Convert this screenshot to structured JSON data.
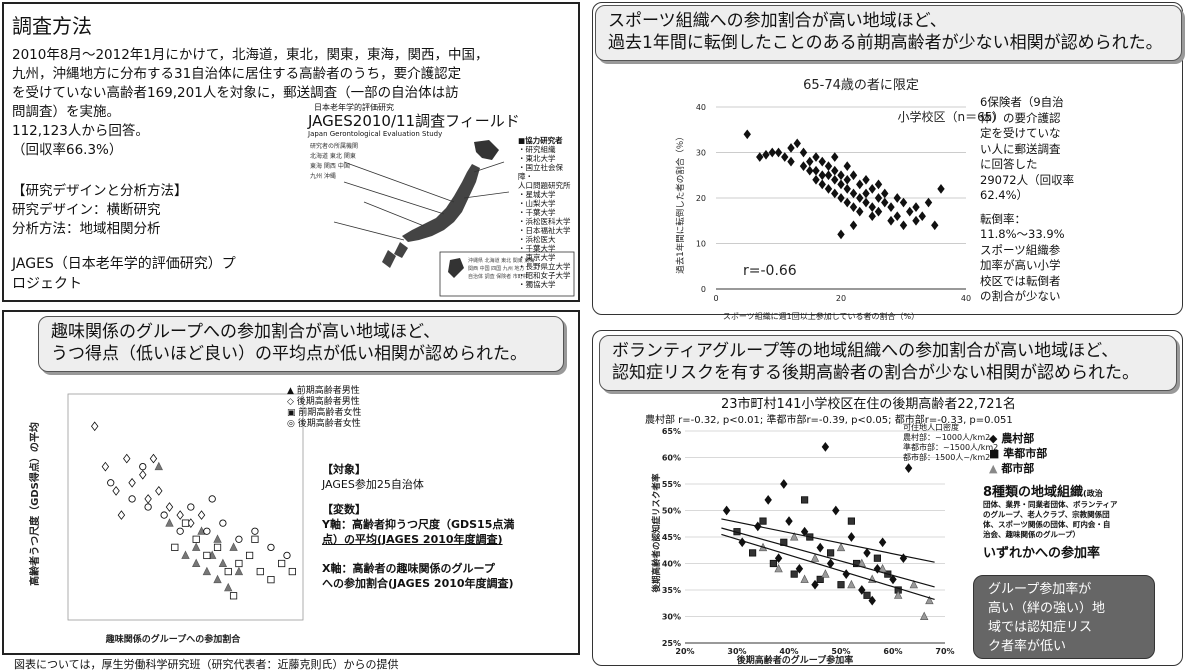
{
  "methods": {
    "title": "調査方法",
    "para": [
      "2010年8月～2012年1月にかけて，北海道，東北，関東，東海，関西，中国，",
      "九州，沖縄地方に分布する31自治体に居住する高齢者のうち，要介護認定",
      "を受けていない高齢者169,201人を対象に，郵送調査（一部の自治体は訪",
      "問調査）を実施。",
      "112,123人から回答。",
      "（回収率66.3%）"
    ],
    "design_head": "【研究デザインと分析方法】",
    "design": "研究デザイン：横断研究",
    "analysis": "分析方法：地域相関分析",
    "jages": [
      "JAGES（日本老年学的評価研究）プ",
      "ロジェクト"
    ],
    "map_title": "JAGES2010/11調査フィールド",
    "map_sub": "Japan Gerontological Evaluation Study",
    "map_small": "日本老年学的評価研究",
    "collab_title": "■協力研究者",
    "collab": [
      "・研究組織",
      "・東北大学",
      "・国立社会保障・",
      "人口問題研究所",
      "・星城大学",
      "・山梨大学",
      "・千葉大学",
      "・浜松医科大学",
      "・日本福祉大学",
      "・浜松医大",
      "・千葉大学",
      "・東京大学",
      "・長野県立大学",
      "・昭和女子大学",
      "・獨協大学"
    ]
  },
  "sports": {
    "banner": [
      "スポーツ組織への参加割合が高い地域ほど、",
      "過去1年間に転倒したことのある前期高齢者が少ない相関が認められた。"
    ],
    "chart_title": "65-74歳の者に限定",
    "label": "小学校区（n＝65）",
    "r": "r=-0.66",
    "ylabel": "過去1年間に転倒した者の割合（％）",
    "xlabel": "スポーツ組織に週1回以上参加している者の割合（%）",
    "note": [
      "6保険者（9自治",
      "体）の要介護認",
      "定を受けていな",
      "い人に郵送調査",
      "に回答した",
      "29072人（回収率",
      "62.4%）",
      "",
      "転倒率：",
      "11.8%～33.9%",
      "スポーツ組織参",
      "加率が高い小学",
      "校区では転倒者",
      "の割合が少ない"
    ]
  },
  "hobby": {
    "banner": [
      "趣味関係のグループへの参加割合が高い地域ほど、",
      "うつ得点（低いほど良い）の平均点が低い相関が認められた。"
    ],
    "legend": [
      "前期高齢者男性",
      "後期高齢者男性",
      "前期高齢者女性",
      "後期高齢者女性"
    ],
    "ylabel": "高齢者うつ尺度（GDS得点）の平均",
    "xlabel": "趣味関係のグループへの参加割合",
    "subject_head": "【対象】",
    "subject": "JAGES参加25自治体",
    "var_head": "【変数】",
    "var_y": [
      "Y軸：高齢者抑うつ尺度（GDS15点満",
      "点）の平均(JAGES 2010年度調査)"
    ],
    "var_x": [
      "X軸：高齢者の趣味関係のグループ",
      "への参加割合(JAGES 2010年度調査)"
    ]
  },
  "volunteer": {
    "banner": [
      "ボランティアグループ等の地域組織への参加割合が高い地域ほど、",
      "認知症リスクを有する後期高齢者の割合が少ない相関が認められた。"
    ],
    "chart_title": "23市町村141小学校区在住の後期高齢者22,721名",
    "stats": "農村部 r=-0.32, p<0.01; 準都市部r=-0.39, p<0.05; 都市部r=-0.33, p=0.051",
    "density": [
      "可住地人口密度",
      "農村部：~1000人/km2",
      "準都市部：~1500人/km2",
      "都市部：1500人~/km2"
    ],
    "legend": [
      "農村部",
      "準都市部",
      "都市部"
    ],
    "orgs_title": "8種類の地域組織",
    "orgs_suffix": "(政治",
    "orgs": [
      "団体、業界・同業者団体、ボランティア",
      "のグループ、老人クラブ、宗教関係団",
      "体、スポーツ関係の団体、町内会・自",
      "治会、趣味関係のグループ）"
    ],
    "any": "いずれかへの参加率",
    "callout": [
      "グループ参加率が",
      "高い（絆の強い）地",
      "域では認知症リス",
      "ク者率が低い"
    ],
    "ylabel": "後期高齢者の認知症リスク者率",
    "xlabel": "後期高齢者のグループ参加率"
  },
  "footer": "図表については，厚生労働科学研究班（研究代表者：近藤克則氏）からの提供",
  "chart_data": [
    {
      "type": "scatter",
      "title": "65-74歳の者に限定",
      "xlabel": "スポーツ組織に週1回以上参加している者の割合（%）",
      "ylabel": "過去1年間に転倒した者の割合（％）",
      "xlim": [
        0,
        40
      ],
      "ylim": [
        0,
        40
      ],
      "xticks": [
        0,
        20,
        40
      ],
      "yticks": [
        0,
        10,
        20,
        30,
        40
      ],
      "grid": true,
      "series": [
        {
          "values": [
            [
              5,
              34
            ],
            [
              7,
              29
            ],
            [
              8,
              29.5
            ],
            [
              9,
              30
            ],
            [
              10,
              30
            ],
            [
              11,
              29
            ],
            [
              12,
              31
            ],
            [
              12,
              28
            ],
            [
              13,
              32
            ],
            [
              14,
              30
            ],
            [
              14,
              27
            ],
            [
              15,
              28
            ],
            [
              15,
              26
            ],
            [
              16,
              29
            ],
            [
              16,
              26
            ],
            [
              16,
              24
            ],
            [
              17,
              28
            ],
            [
              17,
              25
            ],
            [
              17,
              23
            ],
            [
              18,
              27
            ],
            [
              18,
              25
            ],
            [
              18,
              22
            ],
            [
              19,
              26
            ],
            [
              19,
              24
            ],
            [
              19,
              21
            ],
            [
              20,
              25
            ],
            [
              20,
              23
            ],
            [
              20,
              20
            ],
            [
              21,
              27
            ],
            [
              21,
              24
            ],
            [
              21,
              22
            ],
            [
              21,
              19
            ],
            [
              22,
              25
            ],
            [
              22,
              21
            ],
            [
              22,
              18
            ],
            [
              23,
              23
            ],
            [
              23,
              20
            ],
            [
              23,
              17
            ],
            [
              24,
              24
            ],
            [
              24,
              21
            ],
            [
              24,
              19
            ],
            [
              25,
              22
            ],
            [
              25,
              18
            ],
            [
              25,
              16
            ],
            [
              26,
              20
            ],
            [
              26,
              17
            ],
            [
              27,
              21
            ],
            [
              27,
              19
            ],
            [
              28,
              18
            ],
            [
              28,
              15
            ],
            [
              29,
              20
            ],
            [
              29,
              16
            ],
            [
              30,
              19
            ],
            [
              30,
              14
            ],
            [
              31,
              17
            ],
            [
              32,
              18
            ],
            [
              32,
              15
            ],
            [
              33,
              16
            ],
            [
              34,
              19
            ],
            [
              35,
              14
            ],
            [
              36,
              22
            ],
            [
              20,
              12
            ],
            [
              22,
              14
            ],
            [
              26,
              23
            ],
            [
              19,
              29
            ]
          ]
        }
      ]
    },
    {
      "type": "scatter",
      "xlabel": "趣味関係のグループへの参加割合",
      "ylabel": "高齢者うつ尺度（GDS得点）の平均",
      "xlim": [
        1.8,
        6.2
      ],
      "ylim": [
        2.4,
        5.2
      ],
      "series": [
        {
          "name": "前期高齢者男性",
          "values": [
            [
              3.5,
              4.3
            ],
            [
              3.7,
              3.6
            ],
            [
              4.0,
              3.2
            ],
            [
              4.2,
              3.3
            ],
            [
              4.3,
              3.5
            ],
            [
              4.4,
              3.0
            ],
            [
              4.5,
              3.2
            ],
            [
              4.6,
              2.9
            ],
            [
              4.7,
              3.1
            ],
            [
              4.8,
              2.8
            ],
            [
              4.9,
              3.3
            ],
            [
              5.0,
              3.0
            ],
            [
              4.2,
              3.1
            ],
            [
              4.6,
              3.4
            ]
          ]
        },
        {
          "name": "後期高齢者男性",
          "values": [
            [
              2.3,
              4.8
            ],
            [
              2.5,
              4.3
            ],
            [
              2.7,
              4.0
            ],
            [
              2.9,
              4.4
            ],
            [
              3.0,
              4.1
            ],
            [
              3.2,
              4.2
            ],
            [
              3.3,
              3.9
            ],
            [
              3.5,
              4.0
            ],
            [
              3.7,
              3.8
            ],
            [
              3.9,
              3.7
            ],
            [
              4.1,
              3.6
            ],
            [
              4.3,
              3.7
            ],
            [
              2.8,
              3.7
            ],
            [
              3.4,
              4.4
            ]
          ]
        },
        {
          "name": "前期高齢者女性",
          "values": [
            [
              3.8,
              3.3
            ],
            [
              4.0,
              3.6
            ],
            [
              4.2,
              3.4
            ],
            [
              4.4,
              3.2
            ],
            [
              4.6,
              3.3
            ],
            [
              4.8,
              3.0
            ],
            [
              5.0,
              3.1
            ],
            [
              5.2,
              3.2
            ],
            [
              5.4,
              3.0
            ],
            [
              5.6,
              2.9
            ],
            [
              5.8,
              3.1
            ],
            [
              6.0,
              3.0
            ],
            [
              4.9,
              2.7
            ],
            [
              5.3,
              3.4
            ]
          ]
        },
        {
          "name": "後期高齢者女性",
          "values": [
            [
              2.6,
              4.1
            ],
            [
              3.0,
              3.9
            ],
            [
              3.3,
              3.8
            ],
            [
              3.6,
              3.7
            ],
            [
              3.9,
              3.5
            ],
            [
              4.1,
              3.8
            ],
            [
              4.4,
              3.5
            ],
            [
              4.7,
              3.6
            ],
            [
              5.0,
              3.4
            ],
            [
              5.3,
              3.5
            ],
            [
              5.6,
              3.3
            ],
            [
              5.9,
              3.2
            ],
            [
              3.2,
              4.3
            ],
            [
              4.5,
              3.9
            ]
          ]
        }
      ]
    },
    {
      "type": "scatter",
      "title": "23市町村141小学校区在住の後期高齢者22,721名",
      "xlabel": "後期高齢者のグループ参加率",
      "ylabel": "後期高齢者の認知症リスク者率",
      "xlim": [
        20,
        70
      ],
      "ylim": [
        25,
        65
      ],
      "xticks": [
        "20%",
        "30%",
        "40%",
        "50%",
        "60%",
        "70%"
      ],
      "yticks": [
        "25%",
        "30%",
        "35%",
        "40%",
        "45%",
        "50%",
        "55%",
        "60%",
        "65%"
      ],
      "series": [
        {
          "name": "農村部",
          "values": [
            [
              28,
              50
            ],
            [
              31,
              44
            ],
            [
              34,
              47
            ],
            [
              36,
              52
            ],
            [
              38,
              41
            ],
            [
              40,
              48
            ],
            [
              42,
              39
            ],
            [
              43,
              46
            ],
            [
              45,
              36
            ],
            [
              46,
              43
            ],
            [
              48,
              40
            ],
            [
              49,
              50
            ],
            [
              51,
              38
            ],
            [
              52,
              45
            ],
            [
              54,
              35
            ],
            [
              55,
              42
            ],
            [
              57,
              39
            ],
            [
              58,
              44
            ],
            [
              60,
              37
            ],
            [
              62,
              41
            ],
            [
              63,
              58
            ],
            [
              47,
              62
            ],
            [
              39,
              55
            ],
            [
              56,
              33
            ]
          ]
        },
        {
          "name": "準都市部",
          "values": [
            [
              30,
              46
            ],
            [
              33,
              42
            ],
            [
              35,
              48
            ],
            [
              37,
              40
            ],
            [
              39,
              44
            ],
            [
              41,
              38
            ],
            [
              44,
              45
            ],
            [
              46,
              37
            ],
            [
              48,
              42
            ],
            [
              50,
              36
            ],
            [
              53,
              40
            ],
            [
              55,
              34
            ],
            [
              57,
              41
            ],
            [
              59,
              38
            ],
            [
              61,
              35
            ],
            [
              43,
              52
            ],
            [
              52,
              48
            ]
          ]
        },
        {
          "name": "都市部",
          "values": [
            [
              35,
              43
            ],
            [
              38,
              39
            ],
            [
              41,
              45
            ],
            [
              43,
              37
            ],
            [
              45,
              41
            ],
            [
              47,
              38
            ],
            [
              50,
              43
            ],
            [
              52,
              36
            ],
            [
              54,
              40
            ],
            [
              56,
              37
            ],
            [
              58,
              39
            ],
            [
              61,
              34
            ],
            [
              64,
              36
            ],
            [
              67,
              33
            ],
            [
              66,
              30
            ]
          ]
        }
      ]
    }
  ]
}
